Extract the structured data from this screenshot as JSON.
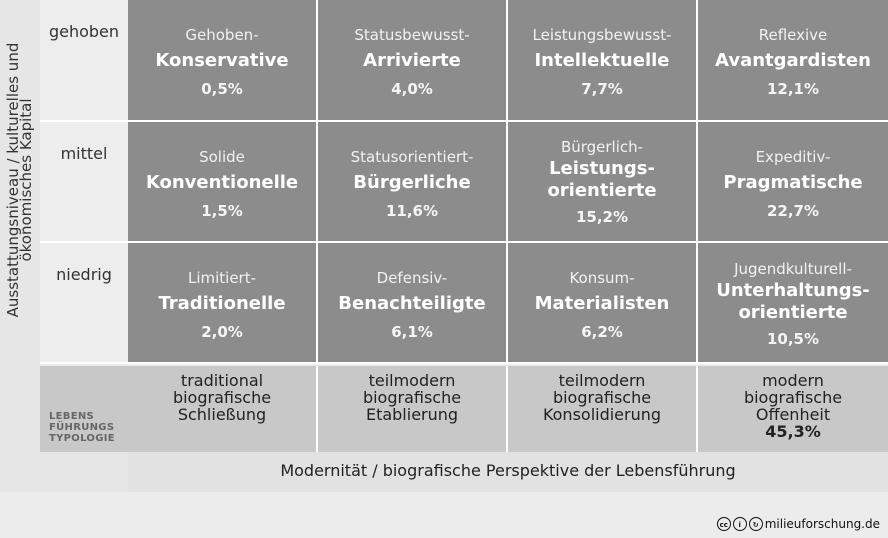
{
  "y_axis": {
    "line1": "Ausstattungsniveau / kulturelles und",
    "line2": "ökonomisches Kapital"
  },
  "row_labels": [
    "gehoben",
    "mittel",
    "niedrig"
  ],
  "milieus": [
    [
      {
        "pre": "Gehoben-",
        "main": [
          "Konservative"
        ],
        "pct": "0,5%"
      },
      {
        "pre": "Statusbewusst-",
        "main": [
          "Arrivierte"
        ],
        "pct": "4,0%"
      },
      {
        "pre": "Leistungsbewusst-",
        "main": [
          "Intellektuelle"
        ],
        "pct": "7,7%"
      },
      {
        "pre": "Reflexive",
        "main": [
          "Avantgardisten"
        ],
        "pct": "12,1%"
      }
    ],
    [
      {
        "pre": "Solide",
        "main": [
          "Konventionelle"
        ],
        "pct": "1,5%"
      },
      {
        "pre": "Statusorientiert-",
        "main": [
          "Bürgerliche"
        ],
        "pct": "11,6%"
      },
      {
        "pre": "Bürgerlich-",
        "main": [
          "Leistungs-",
          "orientierte"
        ],
        "pct": "15,2%"
      },
      {
        "pre": "Expeditiv-",
        "main": [
          "Pragmatische"
        ],
        "pct": "22,7%"
      }
    ],
    [
      {
        "pre": "Limitiert-",
        "main": [
          "Traditionelle"
        ],
        "pct": "2,0%"
      },
      {
        "pre": "Defensiv-",
        "main": [
          "Benachteiligte"
        ],
        "pct": "6,1%"
      },
      {
        "pre": "Konsum-",
        "main": [
          "Materialisten"
        ],
        "pct": "6,2%"
      },
      {
        "pre": "Jugendkulturell-",
        "main": [
          "Unterhaltungs-",
          "orientierte"
        ],
        "pct": "10,5%"
      }
    ]
  ],
  "typology_label": [
    "LEBENS",
    "FÜHRUNGS",
    "TYPOLOGIE"
  ],
  "typologies": [
    {
      "lines": [
        "traditional",
        "biografische",
        "Schließung"
      ],
      "pct": ""
    },
    {
      "lines": [
        "teilmodern",
        "biografische",
        "Etablierung"
      ],
      "pct": ""
    },
    {
      "lines": [
        "teilmodern",
        "biografische",
        "Konsolidierung"
      ],
      "pct": ""
    },
    {
      "lines": [
        "modern",
        "biografische",
        "Offenheit"
      ],
      "pct": "45,3%"
    }
  ],
  "x_axis_label": "Modernität / biografische Perspektive der Lebensführung",
  "credit": {
    "site": "milieuforschung.de",
    "icons": [
      "cc-icon",
      "by-icon",
      "sa-icon"
    ]
  },
  "colors": {
    "cell": "#8c8c8c",
    "typology": "#c8c8c8",
    "axis": "#e2e2e2"
  }
}
